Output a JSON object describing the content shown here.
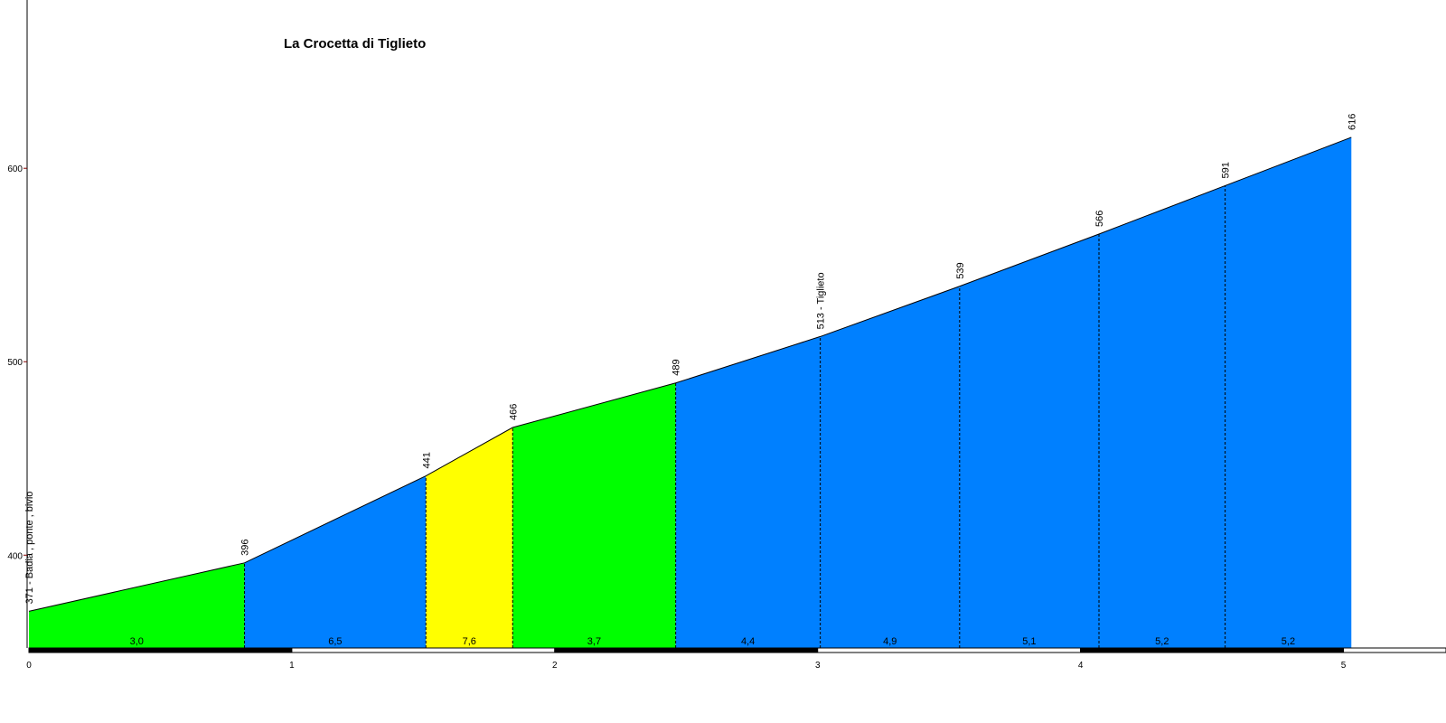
{
  "chart_data": {
    "type": "elevation-profile",
    "title": "La Crocetta di Tiglieto",
    "x": [
      0,
      0.82,
      1.51,
      1.84,
      2.46,
      3.01,
      3.54,
      4.07,
      4.55,
      5.03
    ],
    "values": [
      371,
      396,
      441,
      466,
      489,
      513,
      539,
      566,
      591,
      616
    ],
    "value_labels": [
      "371 - Badia , ponte , bivio",
      "396",
      "441",
      "466",
      "489",
      "513 - Tiglieto",
      "539",
      "566",
      "591",
      "616"
    ],
    "gradients": [
      3.0,
      6.5,
      7.6,
      3.7,
      4.4,
      4.9,
      5.1,
      5.2,
      5.2
    ],
    "gradient_labels": [
      "3,0",
      "6,5",
      "7,6",
      "3,7",
      "4,4",
      "4,9",
      "5,1",
      "5,2",
      "5,2"
    ],
    "segment_colors": [
      "#00ff00",
      "#0080ff",
      "#ffff00",
      "#00ff00",
      "#0080ff",
      "#0080ff",
      "#0080ff",
      "#0080ff",
      "#0080ff"
    ],
    "xlim": [
      0,
      5.39
    ],
    "xticks": [
      0,
      1,
      2,
      3,
      4,
      5
    ],
    "ylim": [
      352,
      687
    ],
    "yticks": [
      400,
      500,
      600
    ]
  }
}
